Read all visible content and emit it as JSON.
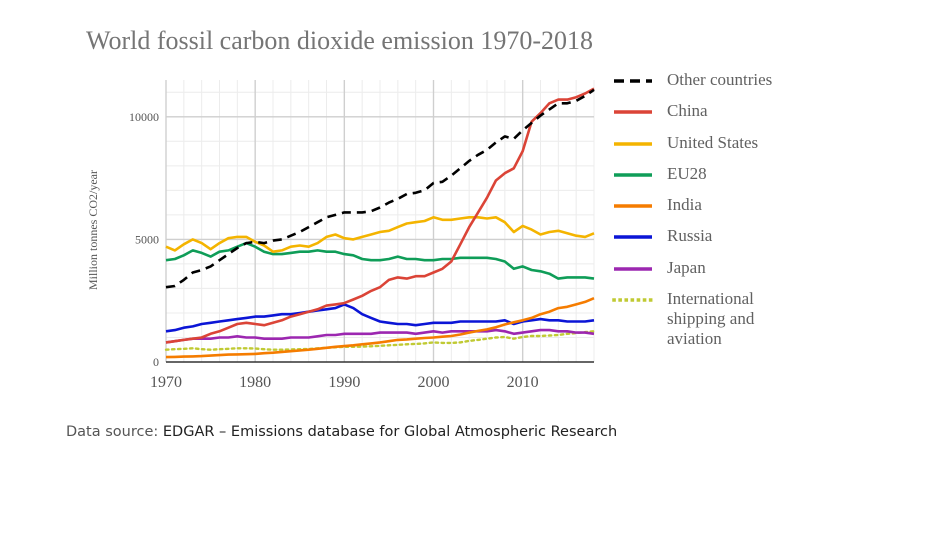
{
  "chart_data": {
    "type": "line",
    "title": "World fossil carbon dioxide emission 1970-2018",
    "ylabel": "Million tonnes CO2/year",
    "xlabel": "",
    "xlim": [
      1970,
      2018
    ],
    "ylim": [
      0,
      11500
    ],
    "xticks": [
      1970,
      1980,
      1990,
      2000,
      2010
    ],
    "yticks": [
      0,
      5000,
      10000
    ],
    "grid": true,
    "legend_position": "right",
    "x": [
      1970,
      1971,
      1972,
      1973,
      1974,
      1975,
      1976,
      1977,
      1978,
      1979,
      1980,
      1981,
      1982,
      1983,
      1984,
      1985,
      1986,
      1987,
      1988,
      1989,
      1990,
      1991,
      1992,
      1993,
      1994,
      1995,
      1996,
      1997,
      1998,
      1999,
      2000,
      2001,
      2002,
      2003,
      2004,
      2005,
      2006,
      2007,
      2008,
      2009,
      2010,
      2011,
      2012,
      2013,
      2014,
      2015,
      2016,
      2017,
      2018
    ],
    "series": [
      {
        "name": "Other countries",
        "color": "#000000",
        "style": "dashed",
        "values": [
          3050,
          3100,
          3350,
          3650,
          3750,
          3900,
          4150,
          4400,
          4650,
          4850,
          4900,
          4850,
          4950,
          5000,
          5150,
          5300,
          5500,
          5700,
          5900,
          6000,
          6100,
          6100,
          6100,
          6150,
          6300,
          6500,
          6650,
          6850,
          6900,
          7000,
          7300,
          7350,
          7600,
          7900,
          8200,
          8450,
          8650,
          8950,
          9200,
          9100,
          9450,
          9750,
          10050,
          10300,
          10550,
          10550,
          10650,
          10850,
          11100
        ]
      },
      {
        "name": "China",
        "color": "#db4437",
        "style": "solid",
        "values": [
          800,
          850,
          900,
          950,
          1000,
          1150,
          1250,
          1400,
          1550,
          1600,
          1550,
          1500,
          1600,
          1700,
          1850,
          1950,
          2050,
          2150,
          2300,
          2350,
          2400,
          2550,
          2700,
          2900,
          3050,
          3350,
          3450,
          3400,
          3500,
          3500,
          3650,
          3800,
          4100,
          4800,
          5500,
          6100,
          6700,
          7400,
          7700,
          7900,
          8600,
          9800,
          10150,
          10550,
          10700,
          10700,
          10800,
          10950,
          11150
        ]
      },
      {
        "name": "United States",
        "color": "#f4b400",
        "style": "solid",
        "values": [
          4700,
          4550,
          4800,
          5000,
          4850,
          4600,
          4850,
          5050,
          5100,
          5100,
          4900,
          4750,
          4500,
          4550,
          4700,
          4750,
          4700,
          4850,
          5100,
          5200,
          5050,
          5000,
          5100,
          5200,
          5300,
          5350,
          5500,
          5650,
          5700,
          5750,
          5900,
          5800,
          5800,
          5850,
          5900,
          5900,
          5850,
          5900,
          5700,
          5300,
          5550,
          5400,
          5200,
          5300,
          5350,
          5250,
          5150,
          5100,
          5250
        ]
      },
      {
        "name": "EU28",
        "color": "#0f9d58",
        "style": "solid",
        "values": [
          4150,
          4200,
          4350,
          4550,
          4450,
          4300,
          4500,
          4550,
          4700,
          4850,
          4700,
          4500,
          4400,
          4400,
          4450,
          4500,
          4500,
          4550,
          4500,
          4500,
          4400,
          4350,
          4200,
          4150,
          4150,
          4200,
          4300,
          4200,
          4200,
          4150,
          4150,
          4200,
          4200,
          4250,
          4250,
          4250,
          4250,
          4200,
          4100,
          3800,
          3900,
          3750,
          3700,
          3600,
          3400,
          3450,
          3450,
          3450,
          3400
        ]
      },
      {
        "name": "India",
        "color": "#f57c00",
        "style": "solid",
        "values": [
          200,
          210,
          220,
          230,
          240,
          260,
          280,
          300,
          310,
          320,
          330,
          360,
          380,
          410,
          440,
          470,
          500,
          540,
          580,
          620,
          650,
          680,
          720,
          760,
          800,
          850,
          900,
          920,
          950,
          980,
          1000,
          1030,
          1060,
          1120,
          1200,
          1270,
          1330,
          1420,
          1530,
          1620,
          1700,
          1800,
          1950,
          2050,
          2200,
          2250,
          2350,
          2450,
          2600
        ]
      },
      {
        "name": "Russia",
        "color": "#0b15d6",
        "style": "solid",
        "values": [
          1250,
          1300,
          1400,
          1450,
          1550,
          1600,
          1650,
          1700,
          1750,
          1800,
          1850,
          1850,
          1900,
          1950,
          1950,
          2000,
          2050,
          2100,
          2150,
          2200,
          2350,
          2200,
          1950,
          1800,
          1650,
          1600,
          1550,
          1550,
          1500,
          1550,
          1600,
          1600,
          1600,
          1650,
          1650,
          1650,
          1650,
          1650,
          1700,
          1550,
          1650,
          1700,
          1750,
          1700,
          1700,
          1650,
          1650,
          1650,
          1700
        ]
      },
      {
        "name": "Japan",
        "color": "#9c27b0",
        "style": "solid",
        "values": [
          800,
          850,
          900,
          950,
          950,
          950,
          1000,
          1000,
          1050,
          1000,
          1000,
          950,
          950,
          950,
          1000,
          1000,
          1000,
          1050,
          1100,
          1100,
          1150,
          1150,
          1150,
          1150,
          1200,
          1200,
          1200,
          1200,
          1150,
          1200,
          1250,
          1200,
          1250,
          1250,
          1250,
          1250,
          1250,
          1300,
          1250,
          1150,
          1200,
          1250,
          1300,
          1300,
          1250,
          1250,
          1200,
          1200,
          1150
        ]
      },
      {
        "name": "International\nshipping and\naviation",
        "color": "#c0ca33",
        "style": "dotted",
        "values": [
          500,
          520,
          540,
          560,
          520,
          500,
          520,
          540,
          560,
          560,
          550,
          520,
          500,
          500,
          510,
          520,
          530,
          560,
          580,
          600,
          620,
          620,
          630,
          640,
          660,
          680,
          700,
          720,
          740,
          760,
          800,
          780,
          780,
          800,
          860,
          900,
          950,
          1000,
          1020,
          950,
          1020,
          1060,
          1060,
          1080,
          1100,
          1150,
          1180,
          1220,
          1250
        ]
      }
    ]
  },
  "source": {
    "prefix": "Data source: ",
    "text": "EDGAR – Emissions database for Global Atmospheric Research"
  }
}
